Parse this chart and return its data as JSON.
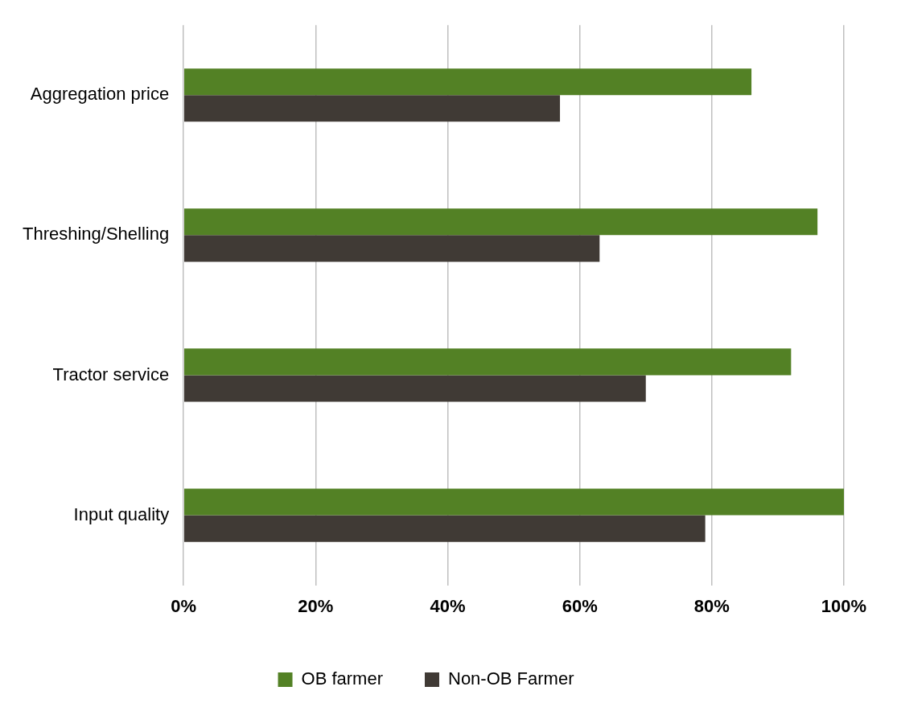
{
  "chart_data": {
    "type": "bar",
    "orientation": "horizontal",
    "categories": [
      "Aggregation price",
      "Threshing/Shelling",
      "Tractor service",
      "Input quality"
    ],
    "series": [
      {
        "name": "OB farmer",
        "color": "#538125",
        "values": [
          86,
          96,
          92,
          100
        ]
      },
      {
        "name": "Non-OB Farmer",
        "color": "#403a35",
        "values": [
          57,
          63,
          70,
          79
        ]
      }
    ],
    "xlim": [
      0,
      100
    ],
    "xticks": [
      {
        "value": 0,
        "label": "0%"
      },
      {
        "value": 20,
        "label": "20%"
      },
      {
        "value": 40,
        "label": "40%"
      },
      {
        "value": 60,
        "label": "60%"
      },
      {
        "value": 80,
        "label": "80%"
      },
      {
        "value": 100,
        "label": "100%"
      }
    ],
    "grid": "x",
    "legend": "bottom"
  }
}
